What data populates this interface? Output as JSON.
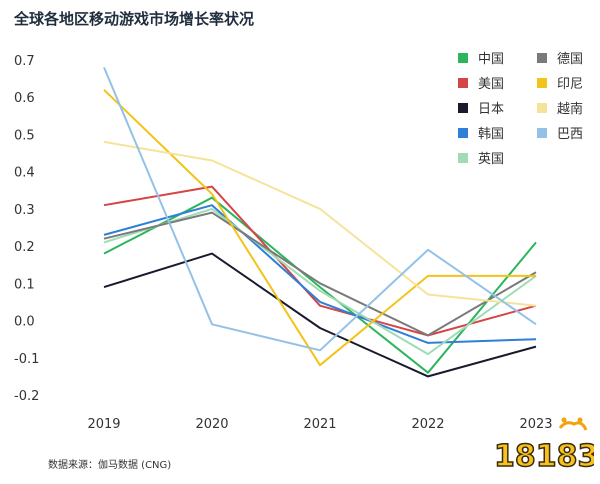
{
  "title": "全球各地区移动游戏市场增长率状况",
  "source": "数据来源：伽马数据 (CNG)",
  "watermark": "18183",
  "chart_data": {
    "type": "line",
    "title": "全球各地区移动游戏市场增长率状况",
    "xlabel": "",
    "ylabel": "",
    "x": [
      "2019",
      "2020",
      "2021",
      "2022",
      "2023"
    ],
    "ylim": [
      -0.2,
      0.7
    ],
    "yticks": [
      "0.7",
      "0.6",
      "0.5",
      "0.4",
      "0.3",
      "0.2",
      "0.1",
      "0.0",
      "-0.1",
      "-0.2"
    ],
    "ytick_values": [
      0.7,
      0.6,
      0.5,
      0.4,
      0.3,
      0.2,
      0.1,
      0.0,
      -0.1,
      -0.2
    ],
    "grid": false,
    "legend_position": "top-right",
    "series": [
      {
        "name": "中国",
        "color": "#2db55d",
        "values": [
          0.18,
          0.33,
          0.09,
          -0.14,
          0.21
        ]
      },
      {
        "name": "美国",
        "color": "#d64545",
        "values": [
          0.31,
          0.36,
          0.04,
          -0.04,
          0.04
        ]
      },
      {
        "name": "日本",
        "color": "#1a1a2e",
        "values": [
          0.09,
          0.18,
          -0.02,
          -0.15,
          -0.07
        ]
      },
      {
        "name": "韩国",
        "color": "#2f7ed8",
        "values": [
          0.23,
          0.31,
          0.05,
          -0.06,
          -0.05
        ]
      },
      {
        "name": "英国",
        "color": "#9fdcb4",
        "values": [
          0.21,
          0.3,
          0.08,
          -0.09,
          0.12
        ]
      },
      {
        "name": "德国",
        "color": "#7a7a7a",
        "values": [
          0.22,
          0.29,
          0.1,
          -0.04,
          0.13
        ]
      },
      {
        "name": "印尼",
        "color": "#f2c318",
        "values": [
          0.62,
          0.34,
          -0.12,
          0.12,
          0.12
        ]
      },
      {
        "name": "越南",
        "color": "#f5e39a",
        "values": [
          0.48,
          0.43,
          0.3,
          0.07,
          0.04
        ]
      },
      {
        "name": "巴西",
        "color": "#93c1e8",
        "values": [
          0.68,
          -0.01,
          -0.08,
          0.19,
          -0.01
        ]
      }
    ]
  }
}
